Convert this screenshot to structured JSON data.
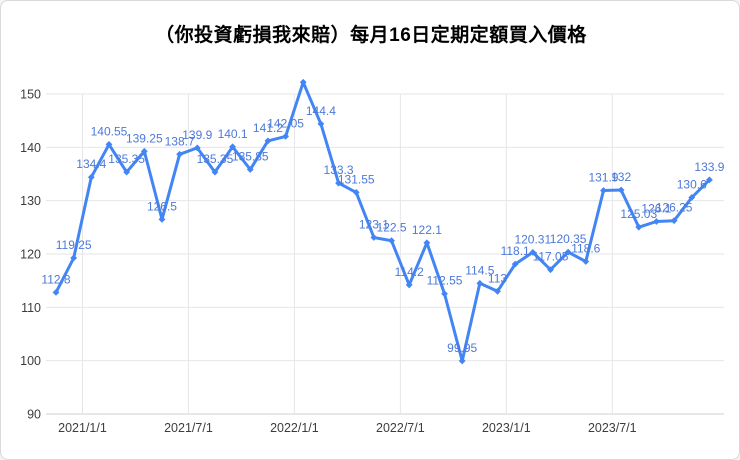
{
  "title": "（你投資虧損我來賠）每月16日定期定額買入價格",
  "colors": {
    "line": "#4285f4",
    "marker": "#4285f4",
    "data_label": "#4c79d9",
    "grid": "#e6e6e6",
    "axis_line": "#cfcfcf",
    "axis_text": "#3d3d3d",
    "background": "#ffffff",
    "border": "#d9d9d9"
  },
  "chart_data": {
    "type": "line",
    "title": "（你投資虧損我來賠）每月16日定期定額買入價格",
    "xlabel": "",
    "ylabel": "",
    "ylim": [
      90,
      150
    ],
    "y_ticks": [
      90,
      100,
      110,
      120,
      130,
      140,
      150
    ],
    "x_tick_labels": [
      "2021/1/1",
      "2021/7/1",
      "2022/1/1",
      "2022/7/1",
      "2023/1/1",
      "2023/7/1"
    ],
    "x_tick_indices": [
      1.5,
      7.5,
      13.5,
      19.5,
      25.5,
      31.5
    ],
    "grid": true,
    "legend_position": "none",
    "marker": "diamond",
    "series": [
      {
        "color": "#4285f4",
        "values": [
          112.8,
          119.25,
          134.4,
          140.55,
          135.35,
          139.25,
          126.5,
          138.7,
          139.9,
          135.35,
          140.1,
          135.85,
          141.2,
          142.05,
          152.2,
          144.4,
          133.3,
          131.55,
          123.1,
          122.5,
          114.2,
          122.1,
          112.55,
          99.95,
          114.5,
          113,
          118.1,
          120.31,
          117.05,
          120.35,
          118.6,
          131.9,
          132,
          125.03,
          126.1,
          126.25,
          130.6,
          133.9
        ],
        "point_labels": [
          "112.8",
          "119.25",
          "134.4",
          "140.55",
          "135.35",
          "139.25",
          "126.5",
          "138.7",
          "139.9",
          "135.35",
          "140.1",
          "135.85",
          "141.2",
          "142.05",
          "",
          "144.4",
          "133.3",
          "131.55",
          "123.1",
          "122.5",
          "114.2",
          "122.1",
          "112.55",
          "99.95",
          "114.5",
          "113",
          "118.1",
          "120.31",
          "117.05",
          "120.35",
          "118.6",
          "131.9",
          "132",
          "125.03",
          "126.1",
          "126.25",
          "130.6",
          "133.9"
        ]
      }
    ]
  }
}
